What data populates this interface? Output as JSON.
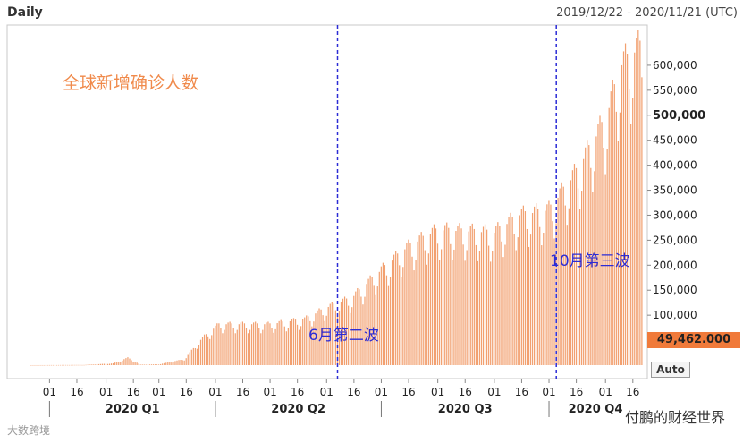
{
  "header": {
    "title": "Daily",
    "date_range": "2019/12/22 - 2020/11/21 (UTC)"
  },
  "chart_data": {
    "type": "bar",
    "title": "全球新增确诊人数",
    "bar_color": "#f2a070",
    "annotation_color": "#2c2cd6",
    "ylim": [
      0,
      650000
    ],
    "yticks": [
      {
        "v": 100000,
        "label": "100,000"
      },
      {
        "v": 150000,
        "label": "150,000"
      },
      {
        "v": 200000,
        "label": "200,000"
      },
      {
        "v": 250000,
        "label": "250,000"
      },
      {
        "v": 300000,
        "label": "300,000"
      },
      {
        "v": 350000,
        "label": "350,000"
      },
      {
        "v": 400000,
        "label": "400,000"
      },
      {
        "v": 450000,
        "label": "450,000"
      },
      {
        "v": 500000,
        "label": "500,000",
        "bold": true
      },
      {
        "v": 550000,
        "label": "550,000"
      },
      {
        "v": 600000,
        "label": "600,000"
      }
    ],
    "xticks": [
      "01",
      "16",
      "01",
      "16",
      "01",
      "16",
      "01",
      "16",
      "01",
      "16",
      "01",
      "16",
      "01",
      "16",
      "01",
      "16",
      "01",
      "16",
      "01",
      "16",
      "01",
      "16"
    ],
    "quarters": [
      "2020 Q1",
      "2020 Q2",
      "2020 Q3",
      "2020 Q4"
    ],
    "annotations": [
      "6月第二波",
      "10月第三波"
    ],
    "current_value": "49,462.000",
    "auto_label": "Auto",
    "daily": {
      "start": "2019-12-22",
      "end": "2020-11-21",
      "anchors": [
        [
          "2019-12-22",
          0
        ],
        [
          "2020-01-20",
          400
        ],
        [
          "2020-02-05",
          3500
        ],
        [
          "2020-02-13",
          15000
        ],
        [
          "2020-02-20",
          1000
        ],
        [
          "2020-03-01",
          1500
        ],
        [
          "2020-03-15",
          12000
        ],
        [
          "2020-03-25",
          55000
        ],
        [
          "2020-04-03",
          82000
        ],
        [
          "2020-04-15",
          82000
        ],
        [
          "2020-05-01",
          82000
        ],
        [
          "2020-05-20",
          92000
        ],
        [
          "2020-06-01",
          115000
        ],
        [
          "2020-06-15",
          135000
        ],
        [
          "2020-07-01",
          190000
        ],
        [
          "2020-07-15",
          235000
        ],
        [
          "2020-08-01",
          270000
        ],
        [
          "2020-08-15",
          268000
        ],
        [
          "2020-09-01",
          265000
        ],
        [
          "2020-09-15",
          300000
        ],
        [
          "2020-10-01",
          310000
        ],
        [
          "2020-10-15",
          380000
        ],
        [
          "2020-11-01",
          490000
        ],
        [
          "2020-11-10",
          600000
        ],
        [
          "2020-11-21",
          640000
        ]
      ]
    }
  },
  "watermarks": {
    "left": "大数跨境",
    "right": "付鹏的财经世界"
  }
}
